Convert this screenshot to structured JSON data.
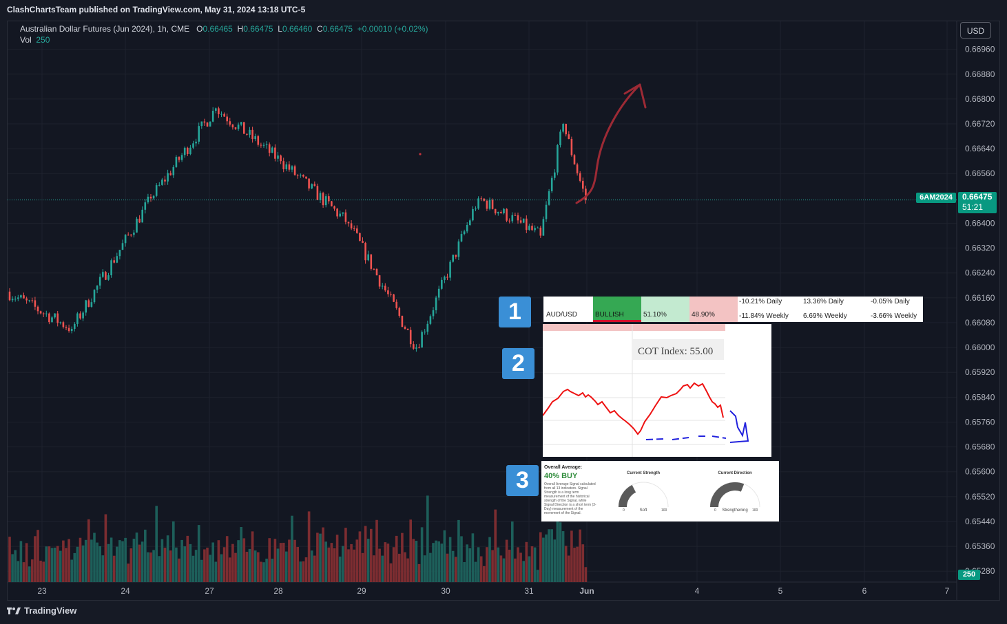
{
  "header": {
    "published": "ClashChartsTeam published on TradingView.com, May 31, 2024 13:18 UTC-5"
  },
  "legend": {
    "symbol": "Australian Dollar Futures (Jun 2024), 1h, CME",
    "o_label": "O",
    "o": "0.66465",
    "h_label": "H",
    "h": "0.66475",
    "l_label": "L",
    "l": "0.66460",
    "c_label": "C",
    "c": "0.66475",
    "change": "+0.00010 (+0.02%)",
    "vol_label": "Vol",
    "vol": "250"
  },
  "currency_button": "USD",
  "price_tag": {
    "ticker": "6AM2024",
    "price": "0.66475",
    "countdown": "51:21"
  },
  "volume_tag": "250",
  "footer": {
    "brand": "TradingView"
  },
  "colors": {
    "up": "#26a69a",
    "down": "#ef5350",
    "background": "#131722",
    "arrow": "#9c2a35"
  },
  "chart_data": {
    "type": "candlestick",
    "y_ticks": [
      "0.66960",
      "0.66880",
      "0.66800",
      "0.66720",
      "0.66640",
      "0.66560",
      "0.66400",
      "0.66320",
      "0.66240",
      "0.66160",
      "0.66080",
      "0.66000",
      "0.65920",
      "0.65840",
      "0.65760",
      "0.65680",
      "0.65600",
      "0.65520",
      "0.65440",
      "0.65360",
      "0.65280"
    ],
    "y_tick_values": [
      0.6696,
      0.6688,
      0.668,
      0.6672,
      0.6664,
      0.6656,
      0.664,
      0.6632,
      0.6624,
      0.6616,
      0.6608,
      0.66,
      0.6592,
      0.6584,
      0.6576,
      0.6568,
      0.656,
      0.6552,
      0.6544,
      0.6536,
      0.6528
    ],
    "ylim": [
      0.65245,
      0.6705
    ],
    "x_ticks": [
      "23",
      "24",
      "27",
      "28",
      "29",
      "30",
      "31",
      "Jun",
      "4",
      "5",
      "6",
      "7"
    ],
    "last_price": 0.66475,
    "volume_max": 2300,
    "segments": [
      {
        "label": "May 23",
        "bars": 23,
        "o": 0.6618,
        "c": 0.6606,
        "hi": 0.6652,
        "lo": 0.6603
      },
      {
        "label": "May 24",
        "bars": 28,
        "o": 0.6606,
        "c": 0.6648,
        "hi": 0.665,
        "lo": 0.6597
      },
      {
        "label": "May 27",
        "bars": 23,
        "o": 0.6648,
        "c": 0.6677,
        "hi": 0.6679,
        "lo": 0.6637
      },
      {
        "label": "May 28",
        "bars": 23,
        "o": 0.6677,
        "c": 0.666,
        "hi": 0.6684,
        "lo": 0.6655
      },
      {
        "label": "May 29",
        "bars": 24,
        "o": 0.666,
        "c": 0.664,
        "hi": 0.6667,
        "lo": 0.6632
      },
      {
        "label": "May 29-30",
        "bars": 24,
        "o": 0.664,
        "c": 0.66,
        "hi": 0.6644,
        "lo": 0.6594
      },
      {
        "label": "May 30",
        "bars": 22,
        "o": 0.66,
        "c": 0.6648,
        "hi": 0.6651,
        "lo": 0.6598
      },
      {
        "label": "May 31",
        "bars": 22,
        "o": 0.6648,
        "c": 0.6636,
        "hi": 0.665,
        "lo": 0.6631
      },
      {
        "label": "May 31 rally",
        "bars": 8,
        "o": 0.6636,
        "c": 0.6672,
        "hi": 0.6676,
        "lo": 0.6634
      },
      {
        "label": "May 31 drop",
        "bars": 8,
        "o": 0.6672,
        "c": 0.66475,
        "hi": 0.6676,
        "lo": 0.6637
      }
    ]
  },
  "panel1": {
    "pair": "AUD/USD",
    "sentiment": "BULLISH",
    "long_pct": "51.10%",
    "short_pct": "48.90%",
    "daily_1": "-10.21% Daily",
    "weekly_1": "-11.84% Weekly",
    "daily_2": "13.36% Daily",
    "weekly_2": "6.69% Weekly",
    "daily_3": "-0.05% Daily",
    "weekly_3": "-3.66% Weekly"
  },
  "panel2": {
    "cot_index": "COT Index: 55.00"
  },
  "panel3": {
    "title": "Overall Average:",
    "signal": "40% BUY",
    "desc": "Overall Average Signal calculated from all 13 indicators. Signal Strength is a long term measurement of the historical strength of the Signal, while Signal Direction is a short term (3-Day) measurement of the movement of the Signal.",
    "strength_title": "Current Strength",
    "strength_value": "Soft",
    "direction_title": "Current Direction",
    "direction_value": "Strengthening",
    "gauge_min": "0",
    "gauge_max": "100",
    "strength_level": 0.35,
    "direction_level": 0.62
  },
  "badges": [
    "1",
    "2",
    "3"
  ]
}
